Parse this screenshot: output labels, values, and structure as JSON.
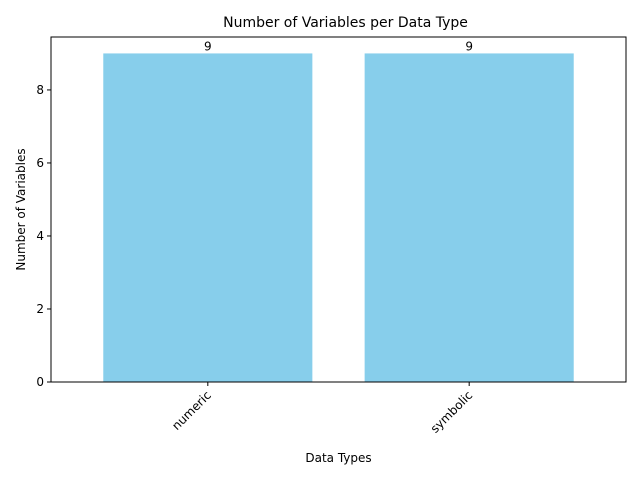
{
  "chart_data": {
    "type": "bar",
    "title": "Number of Variables per Data Type",
    "xlabel": "Data Types",
    "ylabel": "Number of Variables",
    "categories": [
      "numeric",
      "symbolic"
    ],
    "values": [
      9,
      9
    ],
    "data_labels": [
      "9",
      "9"
    ],
    "ylim": [
      0,
      9.45
    ],
    "yticks": [
      0,
      2,
      4,
      6,
      8
    ],
    "ytick_labels": [
      "0",
      "2",
      "4",
      "6",
      "8"
    ],
    "xtick_rotation_deg": 45,
    "bar_color": "#87CEEB",
    "grid": false,
    "legend": "none"
  }
}
